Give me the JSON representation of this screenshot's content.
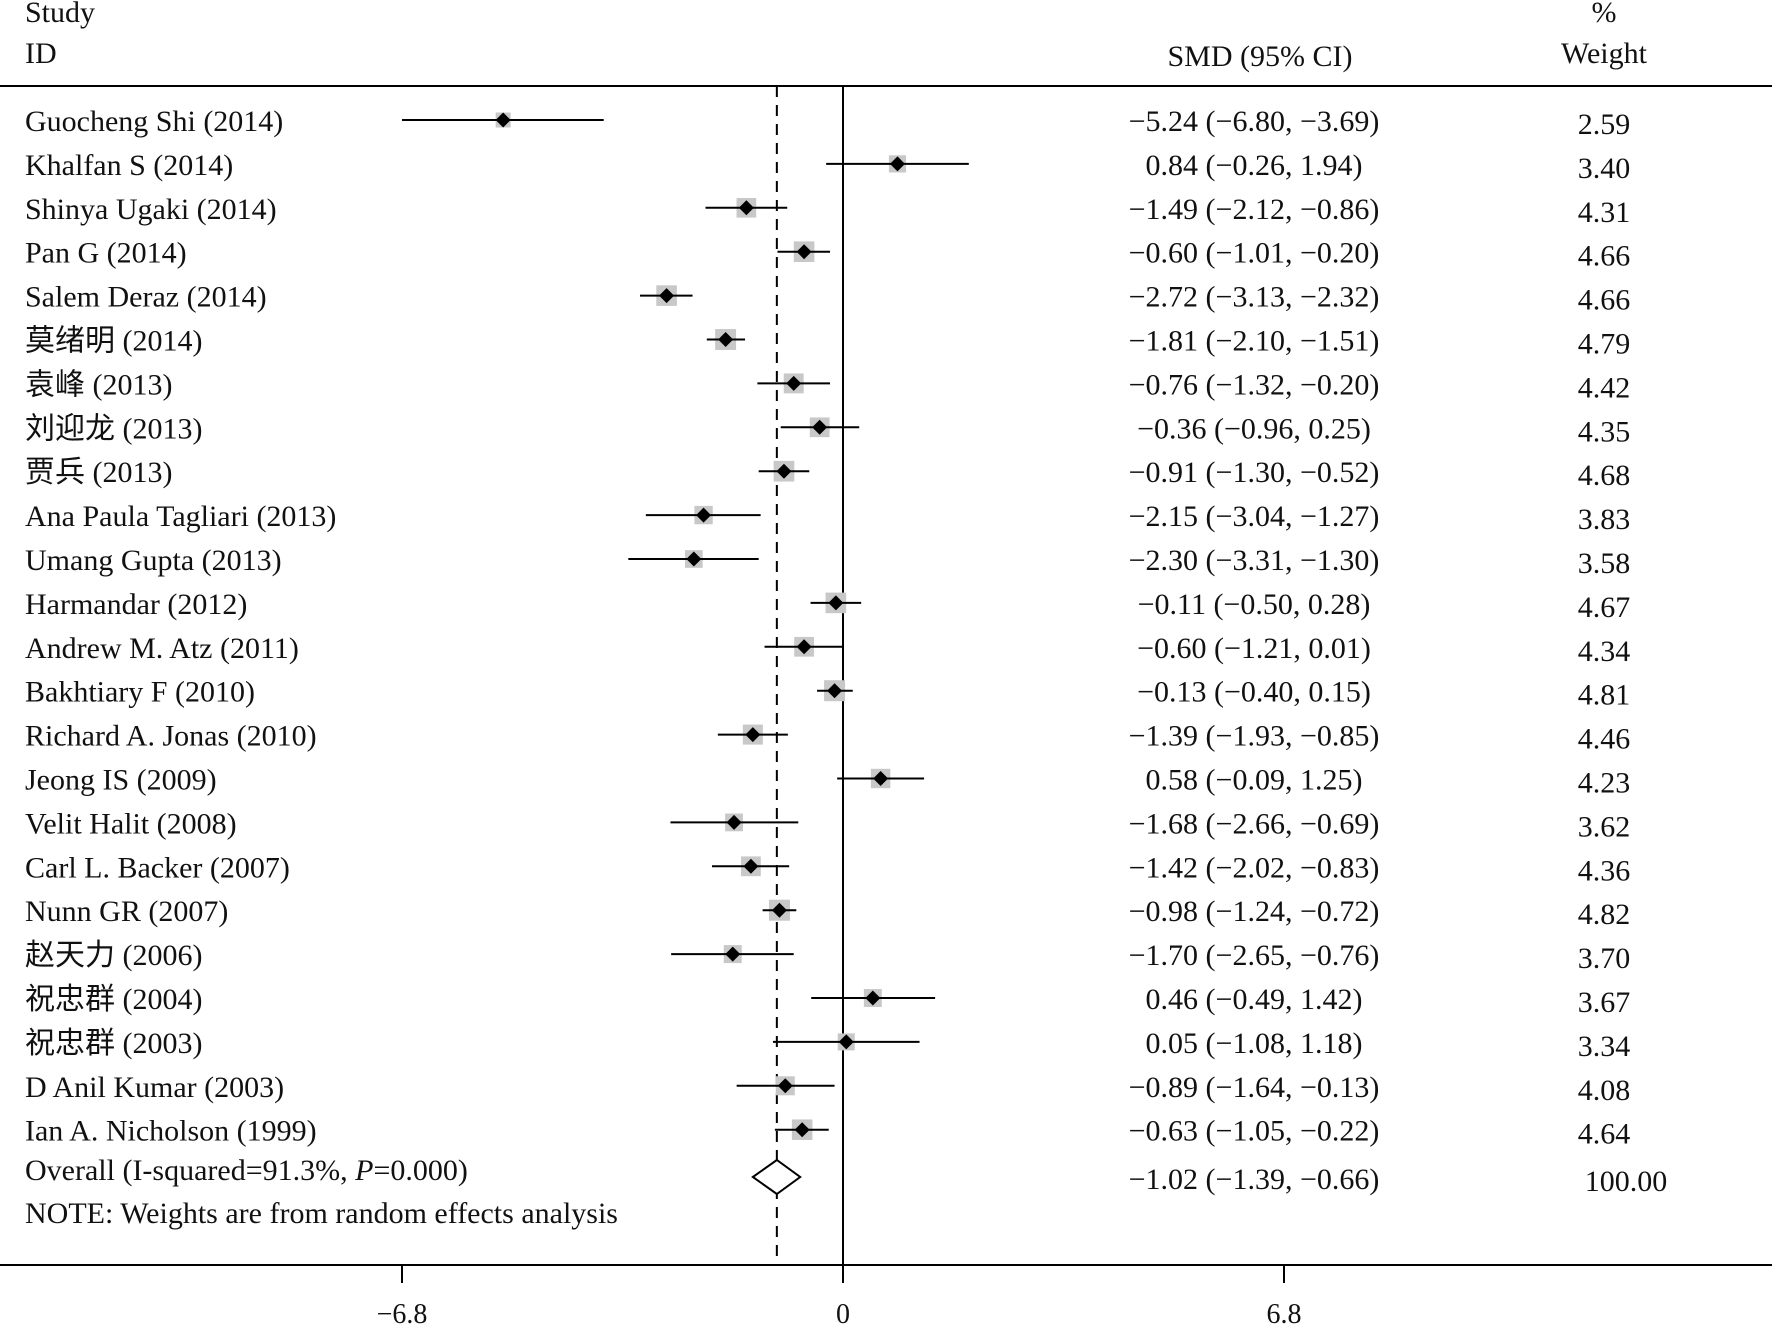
{
  "header": {
    "study_line1": "Study",
    "study_line2": "ID",
    "smd": "SMD (95% CI)",
    "weight_line1": "%",
    "weight_line2": "Weight"
  },
  "overall": {
    "label": "Overall (I-squared=91.3%, ",
    "p_label": "P",
    "p_value": "=0.000)",
    "estimate": -1.02,
    "low": -1.39,
    "high": -0.66,
    "ci_text": "−1.02 (−1.39, −0.66)",
    "weight": "100.00"
  },
  "note": "NOTE: Weights are from random effects analysis",
  "chart_data": {
    "type": "forest",
    "xlabel": "",
    "xlim": [
      -6.8,
      6.8
    ],
    "x_ticks": [
      "−6.8",
      "0",
      "6.8"
    ],
    "reference_line": 0,
    "overall_line": -1.02,
    "studies": [
      {
        "label": "Guocheng Shi (2014)",
        "smd": -5.24,
        "low": -6.8,
        "high": -3.69,
        "ci_text": "−5.24 (−6.80, −3.69)",
        "weight": 2.59,
        "weight_text": "2.59"
      },
      {
        "label": "Khalfan S (2014)",
        "smd": 0.84,
        "low": -0.26,
        "high": 1.94,
        "ci_text": "0.84 (−0.26, 1.94)",
        "weight": 3.4,
        "weight_text": "3.40"
      },
      {
        "label": "Shinya Ugaki (2014)",
        "smd": -1.49,
        "low": -2.12,
        "high": -0.86,
        "ci_text": "−1.49 (−2.12, −0.86)",
        "weight": 4.31,
        "weight_text": "4.31"
      },
      {
        "label": "Pan G (2014)",
        "smd": -0.6,
        "low": -1.01,
        "high": -0.2,
        "ci_text": "−0.60 (−1.01, −0.20)",
        "weight": 4.66,
        "weight_text": "4.66"
      },
      {
        "label": "Salem Deraz (2014)",
        "smd": -2.72,
        "low": -3.13,
        "high": -2.32,
        "ci_text": "−2.72 (−3.13, −2.32)",
        "weight": 4.66,
        "weight_text": "4.66"
      },
      {
        "label": "莫绪明 (2014)",
        "smd": -1.81,
        "low": -2.1,
        "high": -1.51,
        "ci_text": "−1.81 (−2.10, −1.51)",
        "weight": 4.79,
        "weight_text": "4.79"
      },
      {
        "label": "袁峰 (2013)",
        "smd": -0.76,
        "low": -1.32,
        "high": -0.2,
        "ci_text": "−0.76 (−1.32, −0.20)",
        "weight": 4.42,
        "weight_text": "4.42"
      },
      {
        "label": "刘迎龙 (2013)",
        "smd": -0.36,
        "low": -0.96,
        "high": 0.25,
        "ci_text": "−0.36 (−0.96, 0.25)",
        "weight": 4.35,
        "weight_text": "4.35"
      },
      {
        "label": "贾兵 (2013)",
        "smd": -0.91,
        "low": -1.3,
        "high": -0.52,
        "ci_text": "−0.91 (−1.30, −0.52)",
        "weight": 4.68,
        "weight_text": "4.68"
      },
      {
        "label": "Ana Paula Tagliari (2013)",
        "smd": -2.15,
        "low": -3.04,
        "high": -1.27,
        "ci_text": "−2.15 (−3.04, −1.27)",
        "weight": 3.83,
        "weight_text": "3.83"
      },
      {
        "label": "Umang Gupta (2013)",
        "smd": -2.3,
        "low": -3.31,
        "high": -1.3,
        "ci_text": "−2.30 (−3.31, −1.30)",
        "weight": 3.58,
        "weight_text": "3.58"
      },
      {
        "label": "Harmandar (2012)",
        "smd": -0.11,
        "low": -0.5,
        "high": 0.28,
        "ci_text": "−0.11 (−0.50, 0.28)",
        "weight": 4.67,
        "weight_text": "4.67"
      },
      {
        "label": "Andrew M. Atz (2011)",
        "smd": -0.6,
        "low": -1.21,
        "high": 0.01,
        "ci_text": "−0.60 (−1.21, 0.01)",
        "weight": 4.34,
        "weight_text": "4.34"
      },
      {
        "label": "Bakhtiary F (2010)",
        "smd": -0.13,
        "low": -0.4,
        "high": 0.15,
        "ci_text": "−0.13 (−0.40, 0.15)",
        "weight": 4.81,
        "weight_text": "4.81"
      },
      {
        "label": "Richard A. Jonas (2010)",
        "smd": -1.39,
        "low": -1.93,
        "high": -0.85,
        "ci_text": "−1.39 (−1.93, −0.85)",
        "weight": 4.46,
        "weight_text": "4.46"
      },
      {
        "label": "Jeong IS (2009)",
        "smd": 0.58,
        "low": -0.09,
        "high": 1.25,
        "ci_text": "0.58 (−0.09, 1.25)",
        "weight": 4.23,
        "weight_text": "4.23"
      },
      {
        "label": "Velit Halit (2008)",
        "smd": -1.68,
        "low": -2.66,
        "high": -0.69,
        "ci_text": "−1.68 (−2.66, −0.69)",
        "weight": 3.62,
        "weight_text": "3.62"
      },
      {
        "label": "Carl L. Backer (2007)",
        "smd": -1.42,
        "low": -2.02,
        "high": -0.83,
        "ci_text": "−1.42 (−2.02, −0.83)",
        "weight": 4.36,
        "weight_text": "4.36"
      },
      {
        "label": "Nunn GR (2007)",
        "smd": -0.98,
        "low": -1.24,
        "high": -0.72,
        "ci_text": "−0.98 (−1.24, −0.72)",
        "weight": 4.82,
        "weight_text": "4.82"
      },
      {
        "label": "赵天力 (2006)",
        "smd": -1.7,
        "low": -2.65,
        "high": -0.76,
        "ci_text": "−1.70 (−2.65, −0.76)",
        "weight": 3.7,
        "weight_text": "3.70"
      },
      {
        "label": "祝忠群 (2004)",
        "smd": 0.46,
        "low": -0.49,
        "high": 1.42,
        "ci_text": "0.46 (−0.49, 1.42)",
        "weight": 3.67,
        "weight_text": "3.67"
      },
      {
        "label": "祝忠群 (2003)",
        "smd": 0.05,
        "low": -1.08,
        "high": 1.18,
        "ci_text": "0.05 (−1.08, 1.18)",
        "weight": 3.34,
        "weight_text": "3.34"
      },
      {
        "label": "D Anil Kumar (2003)",
        "smd": -0.89,
        "low": -1.64,
        "high": -0.13,
        "ci_text": "−0.89 (−1.64, −0.13)",
        "weight": 4.08,
        "weight_text": "4.08"
      },
      {
        "label": "Ian A. Nicholson (1999)",
        "smd": -0.63,
        "low": -1.05,
        "high": -0.22,
        "ci_text": "−0.63 (−1.05, −0.22)",
        "weight": 4.64,
        "weight_text": "4.64"
      }
    ]
  }
}
